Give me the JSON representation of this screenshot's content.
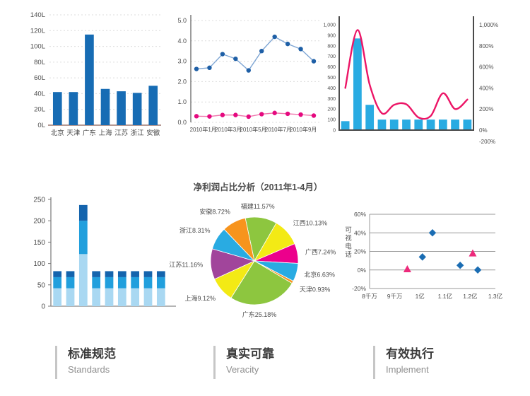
{
  "chart_data": [
    {
      "type": "bar",
      "categories": [
        "北京",
        "天津",
        "广东",
        "上海",
        "江苏",
        "浙江",
        "安徽"
      ],
      "values": [
        42,
        42,
        115,
        46,
        43,
        41,
        50
      ],
      "y_ticks": [
        "0L",
        "20L",
        "40L",
        "60L",
        "80L",
        "100L",
        "120L",
        "140L"
      ],
      "ylim": [
        0,
        140
      ],
      "bar_color": "#176cb4",
      "grid": "dashed"
    },
    {
      "type": "line",
      "x_tick_labels": [
        "2010年1月",
        "2010年3月",
        "2010年5月",
        "2010年7月",
        "2010年9月"
      ],
      "y_ticks": [
        "0.0",
        "1.0",
        "2.0",
        "3.0",
        "4.0",
        "5.0"
      ],
      "ylim": [
        0,
        5
      ],
      "grid": "dashed",
      "series": [
        {
          "name": "blue-series",
          "line_color": "#7fa6d4",
          "marker_color": "#1e5fa6",
          "values": [
            2.62,
            2.68,
            3.35,
            3.12,
            2.55,
            3.5,
            4.2,
            3.85,
            3.6,
            3.0
          ]
        },
        {
          "name": "pink-series",
          "line_color": "#f075ac",
          "marker_color": "#e5097f",
          "values": [
            0.3,
            0.29,
            0.36,
            0.36,
            0.28,
            0.4,
            0.46,
            0.42,
            0.38,
            0.33
          ]
        }
      ]
    },
    {
      "type": "combo",
      "bar_values": [
        85,
        870,
        240,
        100,
        100,
        100,
        100,
        100,
        100,
        100,
        100
      ],
      "line_values": [
        400,
        950,
        430,
        160,
        240,
        245,
        120,
        135,
        350,
        200,
        290
      ],
      "left_ticks": [
        "0",
        "100",
        "200",
        "300",
        "400",
        "500",
        "600",
        "700",
        "800",
        "900",
        "1,000"
      ],
      "right_ticks": [
        "1,000%",
        "800%",
        "600%",
        "400%",
        "200%",
        "0%",
        "-200%"
      ],
      "ylim": [
        0,
        1000
      ],
      "bar_color": "#29abe2",
      "line_color": "#ec1566"
    },
    {
      "type": "stacked_bar",
      "y_ticks": [
        "0",
        "50",
        "100",
        "150",
        "200",
        "250"
      ],
      "ylim": [
        0,
        250
      ],
      "series": [
        {
          "name": "layer-light",
          "color": "#a9d8f2",
          "values": [
            42,
            42,
            122,
            42,
            42,
            42,
            42,
            42,
            42
          ]
        },
        {
          "name": "layer-mid",
          "color": "#219fdd",
          "values": [
            26,
            26,
            78,
            26,
            26,
            26,
            26,
            26,
            26
          ]
        },
        {
          "name": "layer-dark",
          "color": "#1464ad",
          "values": [
            14,
            14,
            37,
            14,
            14,
            14,
            14,
            14,
            14
          ]
        }
      ]
    },
    {
      "type": "pie",
      "title": "净利润占比分析（2011年1-4月）",
      "slices": [
        {
          "label": "福建11.57%",
          "value": 11.57,
          "color": "#8dc63f"
        },
        {
          "label": "江西10.13%",
          "value": 10.13,
          "color": "#f3ea15"
        },
        {
          "label": "广西7.24%",
          "value": 7.24,
          "color": "#ec008c"
        },
        {
          "label": "北京6.63%",
          "value": 6.63,
          "color": "#29abe2"
        },
        {
          "label": "天津0.93%",
          "value": 0.93,
          "color": "#f7941d"
        },
        {
          "label": "广东25.18%",
          "value": 25.18,
          "color": "#8dc63f"
        },
        {
          "label": "上海9.12%",
          "value": 9.12,
          "color": "#f3ea15"
        },
        {
          "label": "江苏11.16%",
          "value": 11.16,
          "color": "#a1459b"
        },
        {
          "label": "浙江8.31%",
          "value": 8.31,
          "color": "#29abe2"
        },
        {
          "label": "安徽8.72%",
          "value": 8.72,
          "color": "#f7941d"
        }
      ]
    },
    {
      "type": "scatter",
      "ylabel": "可视电话",
      "x_ticks": [
        "8千万",
        "9千万",
        "1亿",
        "1.1亿",
        "1.2亿",
        "1.3亿"
      ],
      "y_ticks": [
        "60%",
        "40%",
        "20%",
        "0%",
        "-20%"
      ],
      "xlim": [
        0.8,
        1.3
      ],
      "ylim": [
        -20,
        60
      ],
      "series": [
        {
          "name": "diamond-series",
          "marker": "diamond",
          "color": "#1b6db3",
          "points": [
            [
              1.01,
              14
            ],
            [
              1.05,
              40
            ],
            [
              1.16,
              5
            ],
            [
              1.23,
              0
            ]
          ]
        },
        {
          "name": "triangle-series",
          "marker": "triangle",
          "color": "#ed2a7b",
          "points": [
            [
              0.95,
              1
            ],
            [
              1.21,
              18
            ]
          ]
        }
      ]
    }
  ],
  "features": [
    {
      "title": "标准规范",
      "subtitle": "Standards"
    },
    {
      "title": "真实可靠",
      "subtitle": "Veracity"
    },
    {
      "title": "有效执行",
      "subtitle": "Implement"
    }
  ]
}
